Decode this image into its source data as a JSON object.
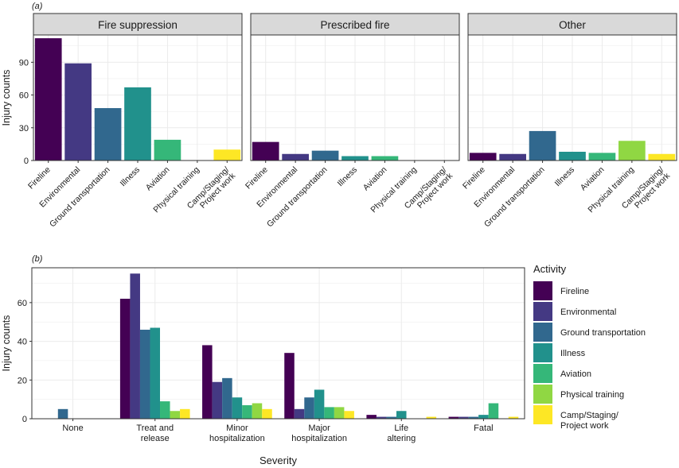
{
  "figure": {
    "panel_a_label": "(a)",
    "panel_b_label": "(b)"
  },
  "activity_colors": [
    "#440154",
    "#443983",
    "#31688e",
    "#21918c",
    "#35b779",
    "#90d743",
    "#fde725"
  ],
  "chart_data": [
    {
      "type": "bar",
      "panel": "a",
      "ylabel": "Injury counts",
      "ylim": [
        0,
        115
      ],
      "yticks": [
        0,
        30,
        60,
        90
      ],
      "grid": true,
      "categories": [
        "Fireline",
        "Environmental",
        "Ground transportation",
        "Illness",
        "Aviation",
        "Physical training",
        "Camp/Staging/\nProject work"
      ],
      "facets": [
        {
          "title": "Fire suppression",
          "values": [
            112,
            89,
            48,
            67,
            19,
            0,
            10
          ]
        },
        {
          "title": "Prescribed fire",
          "values": [
            17,
            6,
            9,
            4,
            4,
            0,
            0
          ]
        },
        {
          "title": "Other",
          "values": [
            7,
            6,
            27,
            8,
            7,
            18,
            6
          ]
        }
      ]
    },
    {
      "type": "bar",
      "panel": "b",
      "xlabel": "Severity",
      "ylabel": "Injury counts",
      "ylim": [
        0,
        78
      ],
      "yticks": [
        0,
        20,
        40,
        60
      ],
      "grid": true,
      "categories": [
        "None",
        "Treat and\nrelease",
        "Minor\nhospitalization",
        "Major\nhospitalization",
        "Life\naltering",
        "Fatal"
      ],
      "series": [
        {
          "name": "Fireline",
          "values": [
            0,
            62,
            38,
            34,
            2,
            1
          ]
        },
        {
          "name": "Environmental",
          "values": [
            0,
            75,
            19,
            5,
            1,
            1
          ]
        },
        {
          "name": "Ground transportation",
          "values": [
            5,
            46,
            21,
            11,
            1,
            1
          ]
        },
        {
          "name": "Illness",
          "values": [
            0,
            47,
            11,
            15,
            4,
            2
          ]
        },
        {
          "name": "Aviation",
          "values": [
            0,
            9,
            7,
            6,
            0,
            8
          ]
        },
        {
          "name": "Physical training",
          "values": [
            0,
            4,
            8,
            6,
            0,
            0
          ]
        },
        {
          "name": "Camp/Staging/\nProject work",
          "values": [
            0,
            5,
            5,
            4,
            1,
            1
          ]
        }
      ],
      "legend": {
        "title": "Activity",
        "position": "right",
        "labels": [
          "Fireline",
          "Environmental",
          "Ground transportation",
          "Illness",
          "Aviation",
          "Physical training",
          "Camp/Staging/\nProject work"
        ]
      }
    }
  ]
}
